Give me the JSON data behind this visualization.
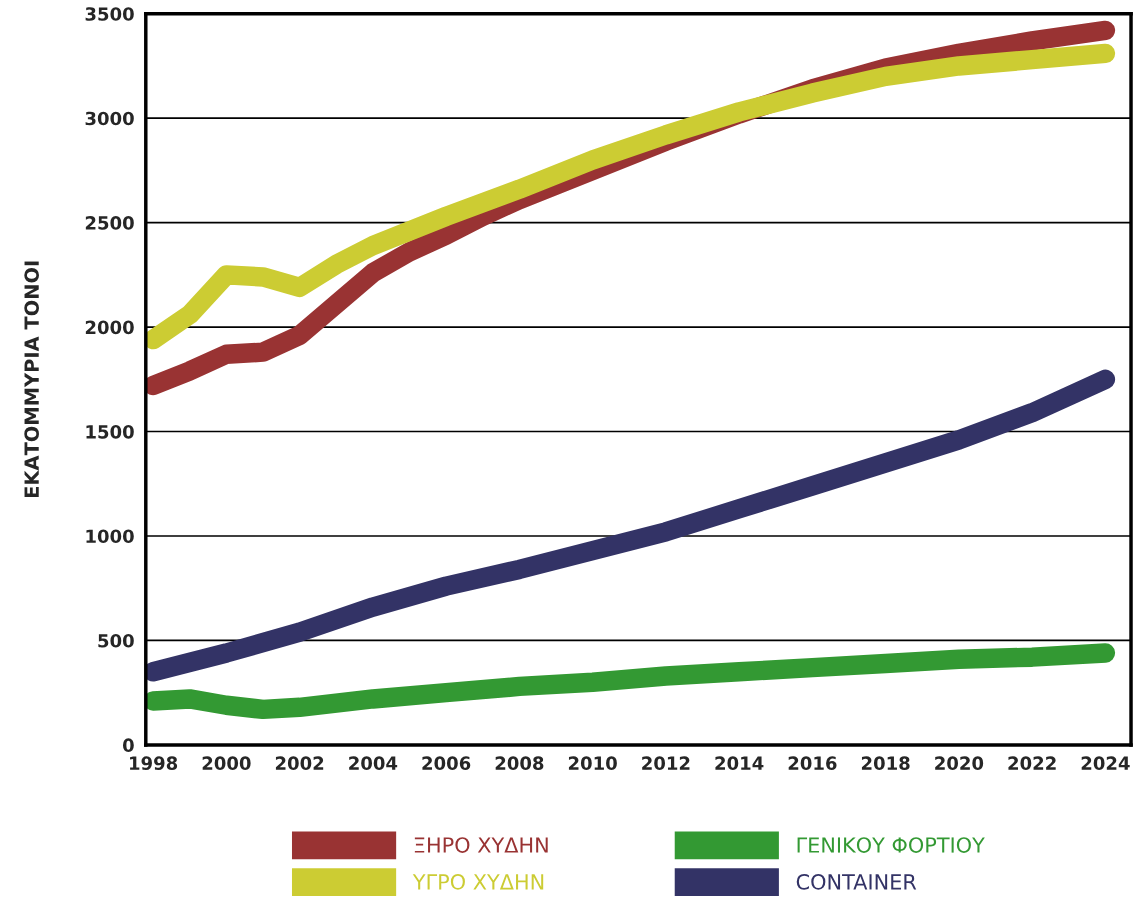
{
  "chart_data": {
    "type": "line",
    "ylabel": "ΕΚΑΤΟΜΜΥΡΙΑ ΤΟΝΟΙ",
    "xlim": [
      1997.8,
      2024.7
    ],
    "xticks": [
      1998,
      2000,
      2002,
      2004,
      2006,
      2008,
      2010,
      2012,
      2014,
      2016,
      2018,
      2020,
      2022,
      2024
    ],
    "ylim": [
      0,
      3500
    ],
    "yticks": [
      0,
      500,
      1000,
      1500,
      2000,
      2500,
      3000,
      3500
    ],
    "grid": "y",
    "legend": "bottom",
    "line_style": "solid",
    "series": [
      {
        "name": "ΞΗΡΟ ΧΥΔΗΝ",
        "color": "#993333",
        "x": [
          1998,
          1999,
          2000,
          2001,
          2002,
          2003,
          2004,
          2005,
          2006,
          2007,
          2008,
          2010,
          2012,
          2014,
          2016,
          2018,
          2020,
          2022,
          2024
        ],
        "values": [
          1720,
          1790,
          1870,
          1880,
          1960,
          2110,
          2260,
          2360,
          2440,
          2530,
          2610,
          2750,
          2890,
          3020,
          3140,
          3240,
          3310,
          3370,
          3420
        ]
      },
      {
        "name": "ΥΓΡΟ ΧΥΔΗΝ",
        "color": "#cccc33",
        "x": [
          1998,
          1999,
          2000,
          2001,
          2002,
          2003,
          2004,
          2006,
          2008,
          2010,
          2012,
          2014,
          2016,
          2018,
          2020,
          2022,
          2024
        ],
        "values": [
          1940,
          2060,
          2250,
          2240,
          2190,
          2300,
          2390,
          2530,
          2660,
          2800,
          2920,
          3030,
          3120,
          3200,
          3250,
          3280,
          3310
        ]
      },
      {
        "name": "ΓΕΝΙΚΟΥ ΦΟΡΤΙΟΥ",
        "color": "#339933",
        "x": [
          1998,
          1999,
          2000,
          2001,
          2002,
          2004,
          2006,
          2008,
          2010,
          2012,
          2014,
          2016,
          2018,
          2020,
          2022,
          2024
        ],
        "values": [
          210,
          220,
          190,
          170,
          180,
          220,
          250,
          280,
          300,
          330,
          350,
          370,
          390,
          410,
          420,
          440
        ]
      },
      {
        "name": "CONTAINER",
        "color": "#333366",
        "x": [
          1998,
          2000,
          2002,
          2004,
          2006,
          2008,
          2010,
          2012,
          2014,
          2016,
          2018,
          2020,
          2022,
          2024
        ],
        "values": [
          350,
          440,
          540,
          660,
          760,
          840,
          930,
          1020,
          1130,
          1240,
          1350,
          1460,
          1590,
          1750
        ]
      }
    ]
  }
}
